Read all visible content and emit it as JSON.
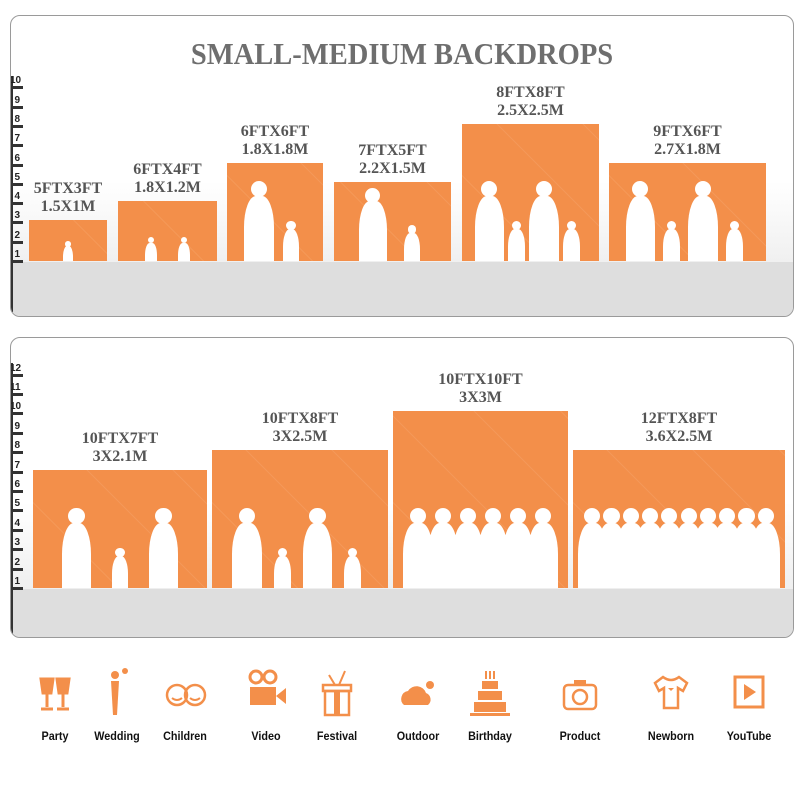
{
  "colors": {
    "bar": "#f38f4a",
    "title": "#6e6e6e",
    "label": "#555555"
  },
  "title": "SMALL-MEDIUM BACKDROPS",
  "chart_data": [
    {
      "type": "bar",
      "ylim": [
        0,
        10
      ],
      "yticks": [
        "1",
        "2",
        "3",
        "4",
        "5",
        "6",
        "7",
        "8",
        "9",
        "10"
      ],
      "bars": [
        {
          "line1": "5FTX3FT",
          "line2": "1.5X1M",
          "height_ft": 3
        },
        {
          "line1": "6FTX4FT",
          "line2": "1.8X1.2M",
          "height_ft": 4
        },
        {
          "line1": "6FTX6FT",
          "line2": "1.8X1.8M",
          "height_ft": 6
        },
        {
          "line1": "7FTX5FT",
          "line2": "2.2X1.5M",
          "height_ft": 5
        },
        {
          "line1": "8FTX8FT",
          "line2": "2.5X2.5M",
          "height_ft": 8
        },
        {
          "line1": "9FTX6FT",
          "line2": "2.7X1.8M",
          "height_ft": 6
        }
      ]
    },
    {
      "type": "bar",
      "ylim": [
        0,
        12
      ],
      "yticks": [
        "1",
        "2",
        "3",
        "4",
        "5",
        "6",
        "7",
        "8",
        "9",
        "10",
        "11",
        "12"
      ],
      "bars": [
        {
          "line1": "10FTX7FT",
          "line2": "3X2.1M",
          "height_ft": 7
        },
        {
          "line1": "10FTX8FT",
          "line2": "3X2.5M",
          "height_ft": 8
        },
        {
          "line1": "10FTX10FT",
          "line2": "3X3M",
          "height_ft": 10
        },
        {
          "line1": "12FTX8FT",
          "line2": "3.6X2.5M",
          "height_ft": 8
        }
      ]
    }
  ],
  "uses": [
    {
      "label": "Party",
      "icon": "toast-glasses-icon"
    },
    {
      "label": "Wedding",
      "icon": "wedding-couple-icon"
    },
    {
      "label": "Children",
      "icon": "children-faces-icon"
    },
    {
      "label": "Video",
      "icon": "video-camera-icon"
    },
    {
      "label": "Festival",
      "icon": "gift-box-icon"
    },
    {
      "label": "Outdoor",
      "icon": "cloud-icon"
    },
    {
      "label": "Birthday",
      "icon": "birthday-cake-icon"
    },
    {
      "label": "Product",
      "icon": "camera-icon"
    },
    {
      "label": "Newborn",
      "icon": "baby-onesie-icon"
    },
    {
      "label": "YouTube",
      "icon": "play-button-icon"
    }
  ]
}
